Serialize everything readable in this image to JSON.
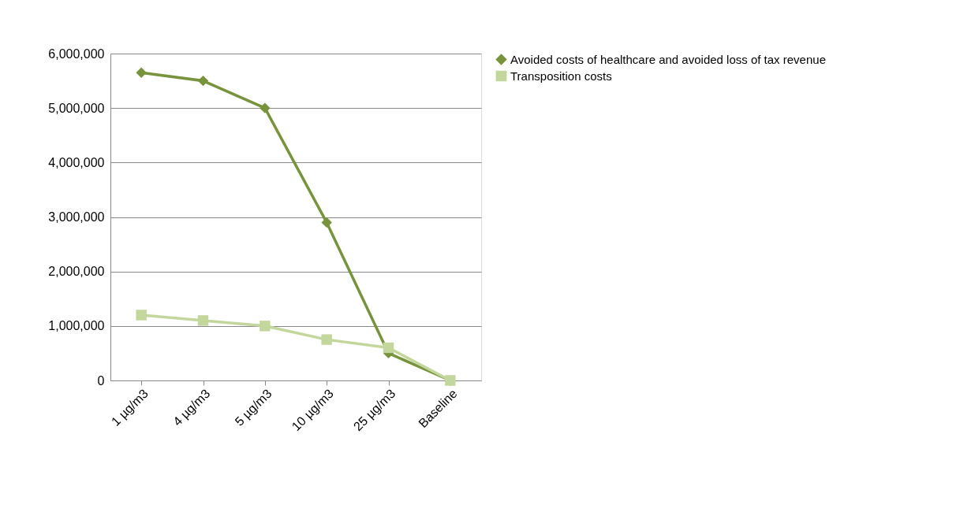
{
  "chart_data": {
    "type": "line",
    "categories": [
      "1 µg/m3",
      "4 µg/m3",
      "5 µg/m3",
      "10 µg/m3",
      "25 µg/m3",
      "Baseline"
    ],
    "series": [
      {
        "name": "Avoided costs of healthcare and avoided loss of tax revenue",
        "color": "#77933c",
        "marker": "diamond",
        "values": [
          5650000,
          5500000,
          5000000,
          2900000,
          500000,
          0
        ]
      },
      {
        "name": "Transposition costs",
        "color": "#c3d69b",
        "marker": "square",
        "values": [
          1200000,
          1100000,
          1000000,
          750000,
          600000,
          0
        ]
      }
    ],
    "ylim": [
      0,
      6000000
    ],
    "yticks": [
      0,
      {
        "value": 1000000,
        "label": "1,000,000"
      },
      {
        "value": 2000000,
        "label": "2,000,000"
      },
      {
        "value": 3000000,
        "label": "3,000,000"
      },
      {
        "value": 4000000,
        "label": "4,000,000"
      },
      {
        "value": 5000000,
        "label": "5,000,000"
      },
      {
        "value": 6000000,
        "label": "6,000,000"
      }
    ],
    "grid": "y",
    "legend": "right",
    "line_style": "solid"
  }
}
